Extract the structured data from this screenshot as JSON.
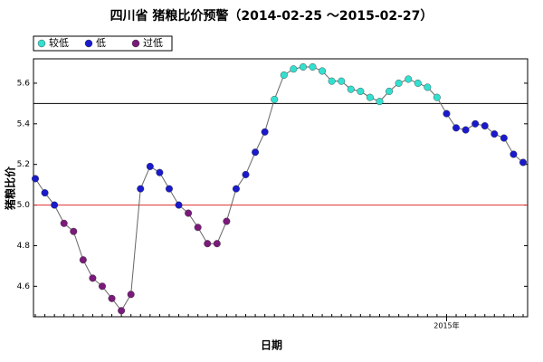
{
  "chart_data": {
    "type": "line",
    "title": "四川省 猪粮比价预警（2014-02-25 ～2015-02-27）",
    "xlabel": "日期",
    "ylabel": "猪粮比价",
    "categories": [
      null,
      null,
      null,
      null,
      null,
      null,
      null,
      null,
      null,
      null,
      null,
      null,
      null,
      null,
      null,
      null,
      null,
      null,
      null,
      null,
      null,
      null,
      null,
      null,
      null,
      null,
      null,
      null,
      null,
      null,
      null,
      null,
      null,
      null,
      null,
      null,
      null,
      null,
      null,
      null,
      null,
      null,
      null,
      "2015年",
      null,
      null,
      null,
      null,
      null,
      null,
      null,
      null
    ],
    "series": [
      {
        "name": "较低",
        "color": "#33e0d0",
        "values": [
          null,
          null,
          null,
          null,
          null,
          null,
          null,
          null,
          null,
          null,
          null,
          null,
          null,
          null,
          null,
          null,
          null,
          null,
          null,
          null,
          null,
          null,
          null,
          null,
          null,
          5.52,
          5.64,
          5.67,
          5.68,
          5.68,
          5.66,
          5.61,
          5.61,
          5.57,
          5.56,
          5.53,
          5.51,
          5.56,
          5.6,
          5.62,
          5.6,
          5.58,
          5.53,
          null,
          null,
          null,
          null,
          null,
          null,
          null,
          null,
          null
        ]
      },
      {
        "name": "低",
        "color": "#1a1acc",
        "values": [
          5.13,
          5.06,
          5.0,
          null,
          null,
          null,
          null,
          null,
          null,
          null,
          null,
          5.08,
          5.19,
          5.16,
          5.08,
          5.0,
          null,
          null,
          null,
          null,
          null,
          5.08,
          5.15,
          5.26,
          5.36,
          null,
          null,
          null,
          null,
          null,
          null,
          null,
          null,
          null,
          null,
          null,
          null,
          null,
          null,
          null,
          null,
          null,
          null,
          5.45,
          5.38,
          5.37,
          5.4,
          5.39,
          5.35,
          5.33,
          5.25,
          5.21
        ]
      },
      {
        "name": "过低",
        "color": "#7a1a7a",
        "values": [
          null,
          null,
          null,
          4.91,
          4.87,
          4.73,
          4.64,
          4.6,
          4.54,
          4.48,
          4.56,
          null,
          null,
          null,
          null,
          null,
          4.96,
          4.89,
          4.81,
          4.81,
          4.92,
          null,
          null,
          null,
          null,
          null,
          null,
          null,
          null,
          null,
          null,
          null,
          null,
          null,
          null,
          null,
          null,
          null,
          null,
          null,
          null,
          null,
          null,
          null,
          null,
          null,
          null,
          null,
          null,
          null,
          null,
          null
        ]
      }
    ],
    "line_color": "#666666",
    "reference_lines": [
      {
        "value": 5.5,
        "color": "#000000"
      },
      {
        "value": 5,
        "color": "#e03030"
      }
    ],
    "ylim": [
      4.45,
      5.72
    ],
    "yticks": [
      4.6,
      4.8,
      {
        "value": 5,
        "label": "5.0"
      },
      5.2,
      5.4,
      5.6
    ]
  }
}
